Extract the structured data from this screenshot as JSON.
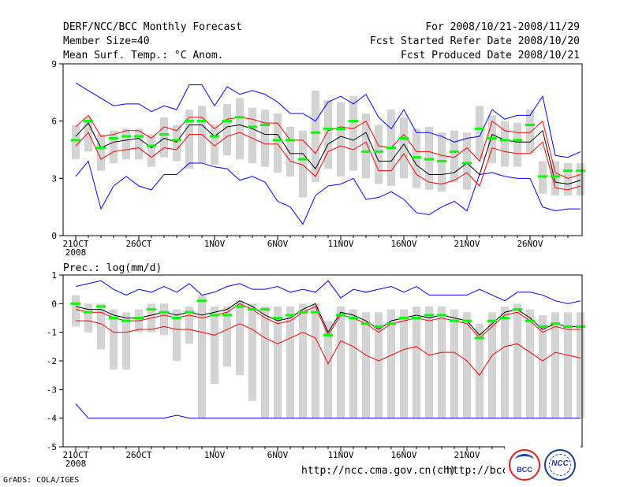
{
  "header": {
    "title": "DERF/NCC/BCC Monthly Forecast",
    "member_size": "Member Size=40",
    "variable": "Mean Surf. Temp.: °C Anom.",
    "period": "For 2008/10/21-2008/11/29",
    "started": "Fcst Started Refer Date 2008/10/20",
    "produced": "Fcst Produced Date 2008/10/21"
  },
  "footer": {
    "url1": "http://ncc.cma.gov.cn(ch)",
    "url2": "http://bcc.",
    "grads": "GrADS: COLA/IGES",
    "logo1": "BCC",
    "logo2": "NCC"
  },
  "colors": {
    "box": "#d4d4d4",
    "mean": "#000000",
    "bound": "#ff0000",
    "extreme": "#0000ff",
    "median": "#00ff00"
  },
  "chart_data": [
    {
      "type": "line",
      "title": "Mean Surf. Temp.: °C Anom.",
      "ylim": [
        0,
        9
      ],
      "yticks": [
        0,
        3,
        6,
        9
      ],
      "xticks": [
        {
          "day": 0,
          "label": "21OCT",
          "sub": "2008"
        },
        {
          "day": 5,
          "label": "26OCT"
        },
        {
          "day": 11,
          "label": "1NOV"
        },
        {
          "day": 16,
          "label": "6NOV"
        },
        {
          "day": 21,
          "label": "11NOV"
        },
        {
          "day": 26,
          "label": "16NOV"
        },
        {
          "day": 31,
          "label": "21NOV"
        },
        {
          "day": 36,
          "label": "26NOV"
        }
      ],
      "series": [
        {
          "name": "max",
          "values": [
            8.0,
            7.6,
            7.2,
            6.8,
            6.9,
            6.9,
            6.5,
            6.8,
            6.6,
            7.9,
            7.9,
            6.8,
            7.8,
            7.4,
            7.6,
            7.4,
            7.0,
            6.4,
            6.4,
            6.0,
            7.0,
            7.3,
            6.9,
            7.4,
            6.2,
            5.6,
            6.6,
            5.4,
            5.4,
            5.2,
            4.9,
            5.1,
            5.2,
            6.6,
            6.1,
            6.3,
            6.3,
            7.3,
            4.2,
            4.1,
            4.4
          ]
        },
        {
          "name": "upper",
          "values": [
            5.7,
            6.3,
            5.2,
            5.3,
            5.5,
            5.5,
            5.1,
            5.7,
            5.5,
            6.2,
            6.2,
            5.6,
            6.1,
            6.2,
            6.1,
            5.9,
            5.9,
            5.0,
            5.0,
            4.3,
            5.5,
            5.7,
            5.6,
            6.0,
            4.7,
            4.6,
            5.3,
            4.4,
            4.4,
            4.2,
            4.1,
            4.6,
            3.9,
            6.0,
            5.5,
            5.4,
            5.4,
            6.0,
            3.3,
            3.0,
            3.2
          ]
        },
        {
          "name": "mean",
          "values": [
            5.2,
            5.9,
            4.6,
            4.9,
            5.0,
            5.1,
            4.6,
            5.1,
            4.9,
            5.8,
            5.8,
            5.2,
            5.7,
            5.8,
            5.6,
            5.3,
            5.3,
            4.3,
            4.3,
            3.5,
            4.8,
            5.2,
            5.0,
            5.4,
            3.9,
            3.9,
            4.8,
            3.7,
            3.2,
            3.2,
            3.3,
            3.8,
            3.2,
            5.3,
            5.0,
            4.9,
            4.9,
            5.5,
            2.8,
            2.7,
            2.9
          ]
        },
        {
          "name": "lower",
          "values": [
            4.7,
            5.4,
            4.0,
            4.4,
            4.5,
            4.6,
            4.1,
            4.6,
            4.5,
            5.3,
            5.3,
            4.7,
            5.2,
            5.4,
            5.1,
            4.8,
            4.8,
            3.9,
            3.7,
            3.1,
            4.4,
            4.7,
            4.5,
            4.9,
            3.4,
            3.4,
            4.3,
            3.2,
            2.8,
            2.7,
            2.9,
            3.3,
            2.6,
            4.6,
            4.4,
            4.3,
            4.3,
            4.9,
            2.5,
            2.4,
            2.6
          ]
        },
        {
          "name": "min",
          "values": [
            3.1,
            3.9,
            1.4,
            2.6,
            3.1,
            2.6,
            2.4,
            3.2,
            3.2,
            3.8,
            3.8,
            3.6,
            3.5,
            2.9,
            3.1,
            2.8,
            1.8,
            1.5,
            0.6,
            2.1,
            2.6,
            2.7,
            3.0,
            1.9,
            2.0,
            2.3,
            1.9,
            1.2,
            1.1,
            1.5,
            1.8,
            1.3,
            3.2,
            3.3,
            3.1,
            3.0,
            3.0,
            1.5,
            1.3,
            1.4,
            1.4
          ]
        },
        {
          "name": "median",
          "values": [
            5.0,
            6.0,
            4.6,
            5.1,
            5.2,
            5.2,
            4.7,
            5.3,
            5.0,
            6.0,
            6.0,
            5.2,
            6.0,
            6.2,
            5.7,
            5.8,
            5.0,
            5.0,
            4.0,
            5.4,
            5.6,
            5.6,
            6.0,
            4.4,
            4.4,
            4.6,
            5.1,
            4.1,
            4.0,
            3.9,
            4.4,
            3.8,
            5.6,
            5.1,
            5.0,
            5.0,
            5.8,
            3.1,
            3.1,
            3.4,
            3.4
          ]
        },
        {
          "name": "box_high",
          "values": [
            5.8,
            6.2,
            5.3,
            5.5,
            5.6,
            5.6,
            5.3,
            6.2,
            5.8,
            6.6,
            6.8,
            5.8,
            6.9,
            7.2,
            6.7,
            6.6,
            6.4,
            5.7,
            5.5,
            7.6,
            7.1,
            7.0,
            7.3,
            6.4,
            5.8,
            6.6,
            6.2,
            5.6,
            5.7,
            5.4,
            5.5,
            5.4,
            6.8,
            6.3,
            6.0,
            5.9,
            6.6,
            3.9,
            3.9,
            3.8,
            3.8
          ]
        },
        {
          "name": "box_low",
          "values": [
            4.0,
            4.4,
            3.4,
            3.8,
            4.0,
            4.0,
            3.6,
            4.1,
            3.9,
            3.5,
            3.8,
            3.7,
            4.2,
            4.0,
            3.8,
            3.6,
            3.3,
            3.1,
            2.0,
            2.8,
            3.5,
            3.1,
            3.4,
            3.0,
            2.7,
            2.6,
            3.0,
            2.5,
            2.4,
            2.3,
            2.8,
            2.4,
            4.0,
            3.8,
            3.6,
            3.6,
            4.3,
            2.2,
            2.1,
            2.1,
            2.1
          ]
        }
      ]
    },
    {
      "type": "line",
      "title": "Prec.: log(mm/d)",
      "ylim": [
        -5,
        1
      ],
      "yticks": [
        -5,
        -4,
        -3,
        -2,
        -1,
        0,
        1
      ],
      "xticks": [
        {
          "day": 0,
          "label": "21OCT",
          "sub": "2008"
        },
        {
          "day": 5,
          "label": "26OCT"
        },
        {
          "day": 11,
          "label": "1NOV"
        },
        {
          "day": 16,
          "label": "6NOV"
        },
        {
          "day": 21,
          "label": "11NOV"
        },
        {
          "day": 26,
          "label": "16NOV"
        },
        {
          "day": 31,
          "label": "21NOV"
        }
      ],
      "series": [
        {
          "name": "max",
          "values": [
            0.6,
            0.7,
            0.8,
            0.5,
            0.3,
            0.5,
            0.4,
            0.6,
            0.4,
            0.7,
            0.3,
            0.4,
            0.6,
            0.7,
            0.5,
            0.5,
            0.6,
            0.4,
            0.5,
            0.4,
            0.8,
            0.2,
            0.5,
            0.4,
            0.5,
            0.6,
            0.4,
            0.6,
            0.3,
            0.3,
            0.3,
            0.3,
            0.5,
            0.3,
            0.1,
            0.4,
            0.4,
            0.3,
            0.1,
            0.0,
            0.1
          ]
        },
        {
          "name": "mean",
          "values": [
            -0.1,
            -0.2,
            -0.2,
            -0.4,
            -0.5,
            -0.5,
            -0.4,
            -0.3,
            -0.4,
            -0.3,
            -0.4,
            -0.3,
            -0.2,
            0.1,
            -0.1,
            -0.4,
            -0.6,
            -0.5,
            -0.2,
            0.0,
            -1.0,
            -0.3,
            -0.4,
            -0.6,
            -0.9,
            -0.6,
            -0.5,
            -0.4,
            -0.5,
            -0.4,
            -0.5,
            -0.6,
            -1.1,
            -0.7,
            -0.3,
            -0.2,
            -0.5,
            -0.9,
            -0.7,
            -0.8,
            -0.8
          ]
        },
        {
          "name": "upper",
          "values": [
            -0.2,
            -0.3,
            -0.3,
            -0.5,
            -0.6,
            -0.6,
            -0.5,
            -0.4,
            -0.5,
            -0.4,
            -0.5,
            -0.4,
            -0.3,
            0.0,
            -0.2,
            -0.5,
            -0.7,
            -0.6,
            -0.3,
            -0.1,
            -1.1,
            -0.4,
            -0.5,
            -0.7,
            -1.0,
            -0.7,
            -0.6,
            -0.5,
            -0.6,
            -0.5,
            -0.6,
            -0.7,
            -1.2,
            -0.8,
            -0.4,
            -0.3,
            -0.6,
            -1.0,
            -0.8,
            -0.9,
            -0.9
          ]
        },
        {
          "name": "lower",
          "values": [
            -0.6,
            -0.6,
            -0.7,
            -1.0,
            -1.0,
            -0.9,
            -0.9,
            -0.8,
            -0.9,
            -0.9,
            -1.0,
            -1.1,
            -0.9,
            -0.7,
            -0.9,
            -1.2,
            -1.4,
            -1.2,
            -1.0,
            -1.2,
            -2.1,
            -1.3,
            -1.5,
            -1.8,
            -2.0,
            -1.8,
            -1.6,
            -1.5,
            -1.8,
            -1.7,
            -1.7,
            -2.0,
            -2.5,
            -1.8,
            -1.5,
            -1.4,
            -1.7,
            -2.0,
            -1.7,
            -1.8,
            -1.9
          ]
        },
        {
          "name": "min",
          "values": [
            -3.5,
            -4.0,
            -4.0,
            -4.0,
            -4.0,
            -4.0,
            -4.0,
            -4.0,
            -3.9,
            -4.0,
            -4.0,
            -4.0,
            -4.0,
            -4.0,
            -4.0,
            -4.0,
            -4.0,
            -4.0,
            -4.0,
            -4.0,
            -4.0,
            -4.0,
            -4.0,
            -4.0,
            -4.0,
            -4.0,
            -4.0,
            -4.0,
            -4.0,
            -4.0,
            -4.0,
            -4.0,
            -4.0,
            -4.0,
            -4.0,
            -4.0,
            -4.0,
            -4.0,
            -4.0,
            -4.0,
            -4.0
          ]
        },
        {
          "name": "median",
          "values": [
            0.0,
            -0.3,
            -0.1,
            -0.5,
            -0.6,
            -0.5,
            -0.2,
            -0.3,
            -0.5,
            -0.3,
            0.1,
            -0.4,
            -0.4,
            -0.1,
            -0.2,
            -0.2,
            -0.5,
            -0.4,
            -0.3,
            -0.3,
            -1.1,
            -0.4,
            -0.5,
            -0.7,
            -0.8,
            -0.7,
            -0.5,
            -0.5,
            -0.4,
            -0.4,
            -0.6,
            -0.6,
            -1.2,
            -0.6,
            -0.5,
            -0.2,
            -0.6,
            -0.8,
            -0.7,
            -0.8,
            -0.8
          ]
        },
        {
          "name": "box_high",
          "values": [
            0.3,
            0.0,
            0.0,
            -0.2,
            -0.3,
            -0.2,
            0.0,
            0.0,
            -0.2,
            -0.1,
            0.3,
            -0.1,
            -0.1,
            0.1,
            0.0,
            -0.1,
            -0.1,
            -0.1,
            0.0,
            0.0,
            -0.6,
            -0.1,
            -0.2,
            -0.3,
            -0.3,
            -0.2,
            -0.2,
            -0.1,
            -0.1,
            -0.1,
            -0.2,
            -0.3,
            -0.7,
            -0.3,
            -0.1,
            0.0,
            -0.2,
            -0.4,
            -0.3,
            -0.3,
            -0.3
          ]
        },
        {
          "name": "box_low",
          "values": [
            -0.8,
            -1.0,
            -1.6,
            -2.3,
            -2.3,
            -1.0,
            -1.0,
            -1.1,
            -2.0,
            -1.4,
            -4.0,
            -2.8,
            -2.2,
            -2.5,
            -3.4,
            -4.0,
            -4.0,
            -4.0,
            -4.0,
            -4.0,
            -4.0,
            -4.0,
            -4.0,
            -4.0,
            -4.0,
            -4.0,
            -4.0,
            -4.0,
            -4.0,
            -4.0,
            -4.0,
            -4.0,
            -4.0,
            -4.0,
            -4.0,
            -4.0,
            -4.0,
            -4.0,
            -4.0,
            -4.0,
            -4.0
          ]
        }
      ]
    }
  ]
}
